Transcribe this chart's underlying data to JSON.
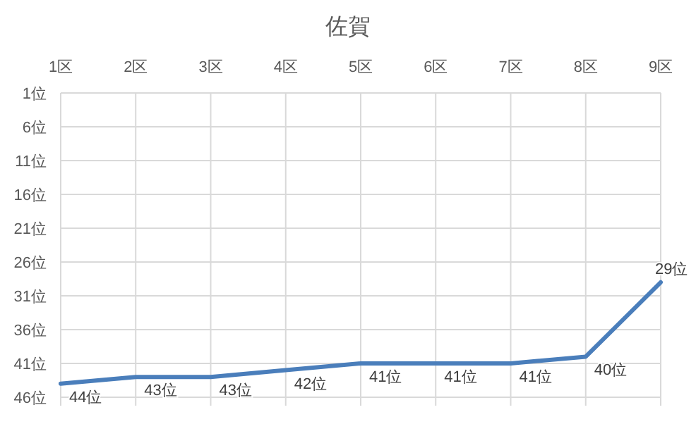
{
  "chart_data": {
    "type": "line",
    "title": "佐賀",
    "categories": [
      "1区",
      "2区",
      "3区",
      "4区",
      "5区",
      "6区",
      "7区",
      "8区",
      "9区"
    ],
    "series": [
      {
        "color": "#4a7ebb",
        "values": [
          44,
          43,
          43,
          42,
          41,
          41,
          41,
          40,
          29
        ],
        "value_labels": [
          "44位",
          "43位",
          "43位",
          "42位",
          "41位",
          "41位",
          "41位",
          "40位",
          "29位"
        ]
      }
    ],
    "ylim": [
      46,
      1
    ],
    "yticks": [
      {
        "value": 1,
        "label": "1位"
      },
      {
        "value": 6,
        "label": "6位"
      },
      {
        "value": 11,
        "label": "11位"
      },
      {
        "value": 16,
        "label": "16位"
      },
      {
        "value": 21,
        "label": "21位"
      },
      {
        "value": 26,
        "label": "26位"
      },
      {
        "value": 31,
        "label": "31位"
      },
      {
        "value": 36,
        "label": "36位"
      },
      {
        "value": 41,
        "label": "41位"
      },
      {
        "value": 46,
        "label": "46位"
      }
    ],
    "grid": true,
    "marker": "none",
    "line_style": "solid"
  }
}
